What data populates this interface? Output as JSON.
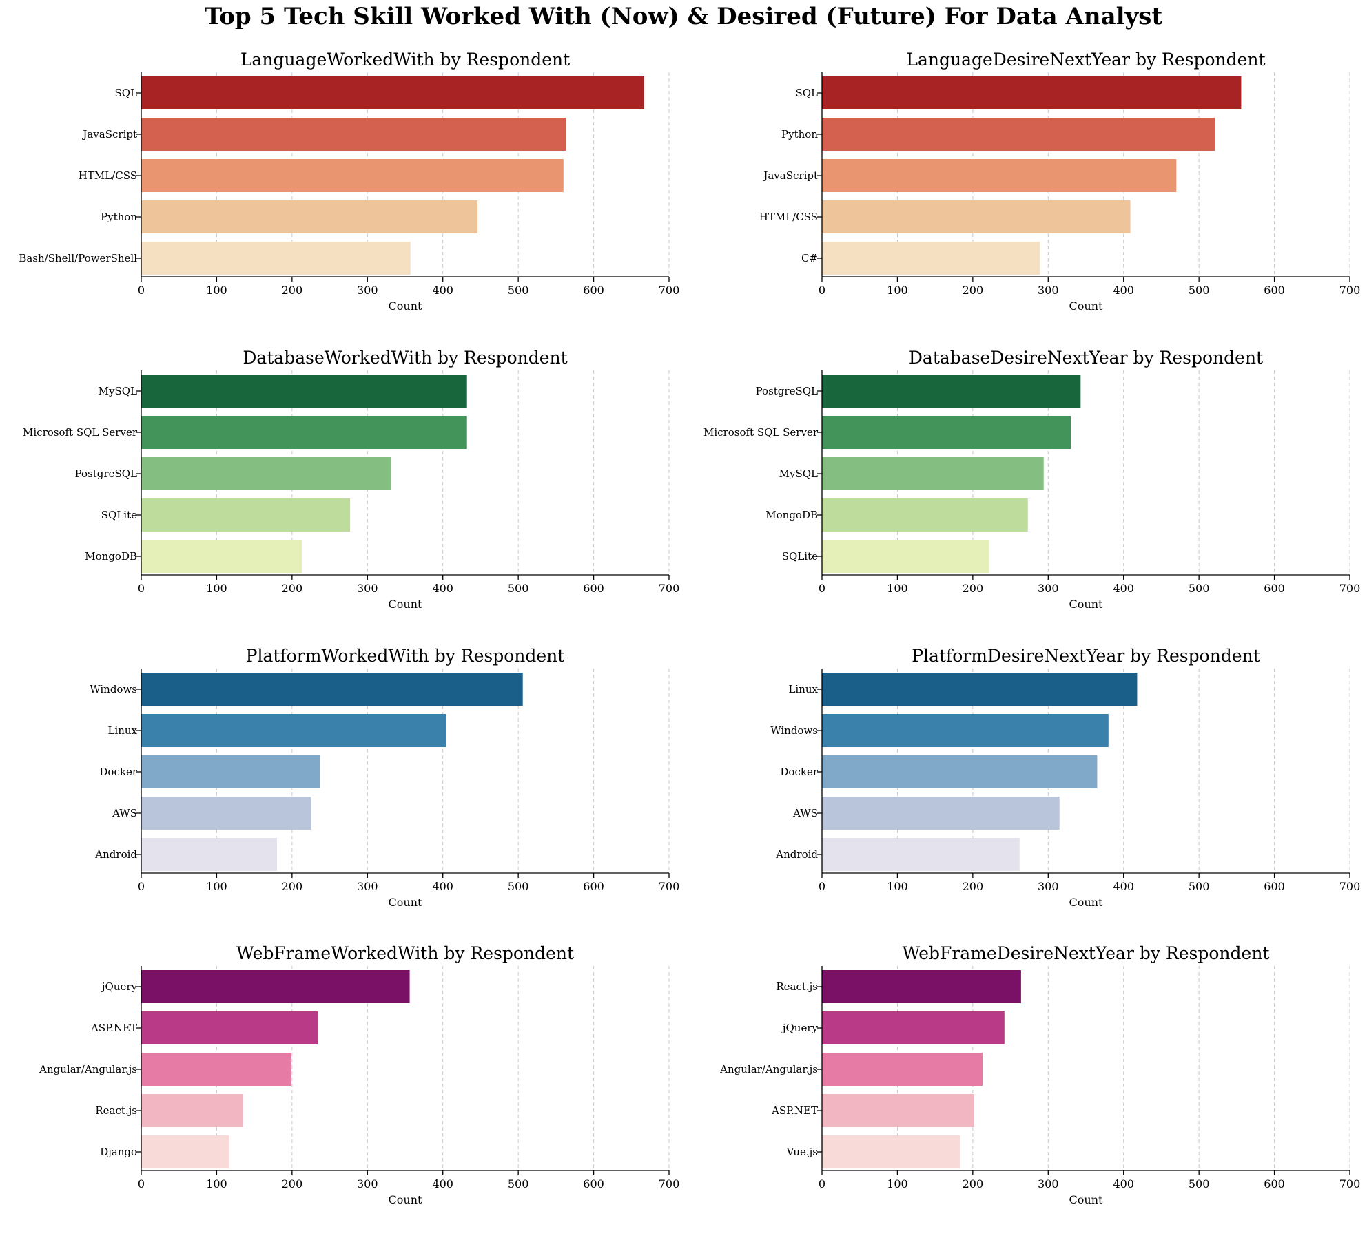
{
  "suptitle": "Top 5 Tech Skill Worked With (Now) & Desired (Future) For Data Analyst",
  "palettes": {
    "red": [
      "#a82323",
      "#d46150",
      "#e99670",
      "#eec59b",
      "#f6e0c2"
    ],
    "green": [
      "#18663c",
      "#42945a",
      "#84bf81",
      "#bedc9c",
      "#e5f0b8"
    ],
    "blue": [
      "#1a5e8a",
      "#3a82ac",
      "#80a8c8",
      "#b8c5db",
      "#e3e2ed"
    ],
    "purple": [
      "#7b1167",
      "#b93b88",
      "#e67ca5",
      "#f1b6c1",
      "#f8dbd8"
    ]
  },
  "chart_data": [
    {
      "type": "bar",
      "orientation": "horizontal",
      "title": "LanguageWorkedWith by Respondent",
      "xlabel": "Count",
      "ylabel": "",
      "xlim": [
        0,
        700
      ],
      "xticks": [
        0,
        100,
        200,
        300,
        400,
        500,
        600,
        700
      ],
      "grid": "x-dashed",
      "palette": "red",
      "categories": [
        "SQL",
        "JavaScript",
        "HTML/CSS",
        "Python",
        "Bash/Shell/PowerShell"
      ],
      "values": [
        667,
        563,
        560,
        446,
        357
      ]
    },
    {
      "type": "bar",
      "orientation": "horizontal",
      "title": "LanguageDesireNextYear by Respondent",
      "xlabel": "Count",
      "ylabel": "",
      "xlim": [
        0,
        700
      ],
      "xticks": [
        0,
        100,
        200,
        300,
        400,
        500,
        600,
        700
      ],
      "grid": "x-dashed",
      "palette": "red",
      "categories": [
        "SQL",
        "Python",
        "JavaScript",
        "HTML/CSS",
        "C#"
      ],
      "values": [
        556,
        521,
        470,
        409,
        289
      ]
    },
    {
      "type": "bar",
      "orientation": "horizontal",
      "title": "DatabaseWorkedWith by Respondent",
      "xlabel": "Count",
      "ylabel": "",
      "xlim": [
        0,
        700
      ],
      "xticks": [
        0,
        100,
        200,
        300,
        400,
        500,
        600,
        700
      ],
      "grid": "x-dashed",
      "palette": "green",
      "categories": [
        "MySQL",
        "Microsoft SQL Server",
        "PostgreSQL",
        "SQLite",
        "MongoDB"
      ],
      "values": [
        432,
        432,
        331,
        277,
        213
      ]
    },
    {
      "type": "bar",
      "orientation": "horizontal",
      "title": "DatabaseDesireNextYear by Respondent",
      "xlabel": "Count",
      "ylabel": "",
      "xlim": [
        0,
        700
      ],
      "xticks": [
        0,
        100,
        200,
        300,
        400,
        500,
        600,
        700
      ],
      "grid": "x-dashed",
      "palette": "green",
      "categories": [
        "PostgreSQL",
        "Microsoft SQL Server",
        "MySQL",
        "MongoDB",
        "SQLite"
      ],
      "values": [
        343,
        330,
        294,
        273,
        222
      ]
    },
    {
      "type": "bar",
      "orientation": "horizontal",
      "title": "PlatformWorkedWith by Respondent",
      "xlabel": "Count",
      "ylabel": "",
      "xlim": [
        0,
        700
      ],
      "xticks": [
        0,
        100,
        200,
        300,
        400,
        500,
        600,
        700
      ],
      "grid": "x-dashed",
      "palette": "blue",
      "categories": [
        "Windows",
        "Linux",
        "Docker",
        "AWS",
        "Android"
      ],
      "values": [
        506,
        404,
        237,
        225,
        180
      ]
    },
    {
      "type": "bar",
      "orientation": "horizontal",
      "title": "PlatformDesireNextYear by Respondent",
      "xlabel": "Count",
      "ylabel": "",
      "xlim": [
        0,
        700
      ],
      "xticks": [
        0,
        100,
        200,
        300,
        400,
        500,
        600,
        700
      ],
      "grid": "x-dashed",
      "palette": "blue",
      "categories": [
        "Linux",
        "Windows",
        "Docker",
        "AWS",
        "Android"
      ],
      "values": [
        418,
        380,
        365,
        315,
        262
      ]
    },
    {
      "type": "bar",
      "orientation": "horizontal",
      "title": "WebFrameWorkedWith by Respondent",
      "xlabel": "Count",
      "ylabel": "",
      "xlim": [
        0,
        700
      ],
      "xticks": [
        0,
        100,
        200,
        300,
        400,
        500,
        600,
        700
      ],
      "grid": "x-dashed",
      "palette": "purple",
      "categories": [
        "jQuery",
        "ASP.NET",
        "Angular/Angular.js",
        "React.js",
        "Django"
      ],
      "values": [
        356,
        234,
        199,
        135,
        117
      ]
    },
    {
      "type": "bar",
      "orientation": "horizontal",
      "title": "WebFrameDesireNextYear by Respondent",
      "xlabel": "Count",
      "ylabel": "",
      "xlim": [
        0,
        700
      ],
      "xticks": [
        0,
        100,
        200,
        300,
        400,
        500,
        600,
        700
      ],
      "grid": "x-dashed",
      "palette": "purple",
      "categories": [
        "React.js",
        "jQuery",
        "Angular/Angular.js",
        "ASP.NET",
        "Vue.js"
      ],
      "values": [
        264,
        242,
        213,
        202,
        183
      ]
    }
  ]
}
